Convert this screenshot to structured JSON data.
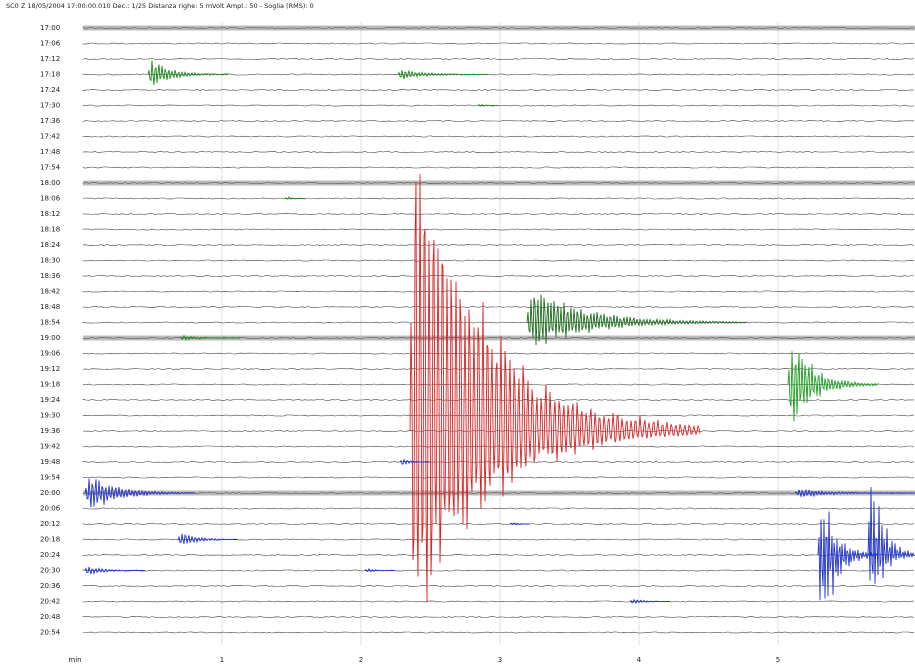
{
  "header": {
    "title": "SC0 Z   18/05/2004  17:00:00.010   Dec.: 1/25   Distanza righe: 5 mVolt   Ampl.: 50 - Soglia (RMS): 0"
  },
  "rows": [
    "17:00",
    "17:06",
    "17:12",
    "17:18",
    "17:24",
    "17:30",
    "17:36",
    "17:42",
    "17:48",
    "17:54",
    "18:00",
    "18:06",
    "18:12",
    "18:18",
    "18:24",
    "18:30",
    "18:36",
    "18:42",
    "18:48",
    "18:54",
    "19:00",
    "19:06",
    "19:12",
    "19:18",
    "19:24",
    "19:30",
    "19:36",
    "19:42",
    "19:48",
    "19:54",
    "20:00",
    "20:06",
    "20:12",
    "20:18",
    "20:24",
    "20:30",
    "20:36",
    "20:42",
    "20:48",
    "20:54"
  ],
  "x_axis": {
    "unit": "min",
    "ticks": [
      "1",
      "2",
      "3",
      "4",
      "5"
    ]
  }
}
